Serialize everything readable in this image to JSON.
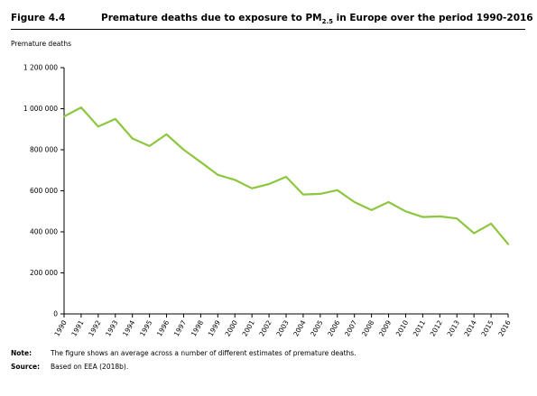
{
  "figure": {
    "label": "Figure 4.4",
    "title_pre": "Premature deaths due to exposure to PM",
    "title_sub": "2.5",
    "title_post": " in Europe over the period 1990-2016"
  },
  "notes": [
    {
      "key": "Note:",
      "text": "The figure shows an average across a number of different estimates of premature deaths."
    },
    {
      "key": "Source:",
      "text": "Based on EEA (2018b)."
    }
  ],
  "colors": {
    "line": "#8dc63f",
    "axis": "#000000"
  },
  "chart_data": {
    "type": "line",
    "title": "",
    "xlabel": "",
    "ylabel": "Premature deaths",
    "ylim": [
      0,
      1200000
    ],
    "yticks": [
      0,
      200000,
      400000,
      600000,
      800000,
      1000000,
      1200000
    ],
    "ytick_labels": [
      "0",
      "200 000",
      "400 000",
      "600 000",
      "800 000",
      "1 000 000",
      "1 200 000"
    ],
    "grid": false,
    "legend": "none",
    "x": [
      "1990",
      "1991",
      "1992",
      "1993",
      "1994",
      "1995",
      "1996",
      "1997",
      "1998",
      "1999",
      "2000",
      "2001",
      "2002",
      "2003",
      "2004",
      "2005",
      "2006",
      "2007",
      "2008",
      "2009",
      "2010",
      "2011",
      "2012",
      "2013",
      "2014",
      "2015",
      "2016"
    ],
    "series": [
      {
        "values": [
          962000,
          1006000,
          913000,
          950000,
          855000,
          818000,
          875000,
          800000,
          740000,
          678000,
          653000,
          612000,
          633000,
          668000,
          582000,
          585000,
          603000,
          545000,
          506000,
          545000,
          500000,
          472000,
          475000,
          465000,
          393000,
          440000,
          340000
        ]
      }
    ]
  }
}
